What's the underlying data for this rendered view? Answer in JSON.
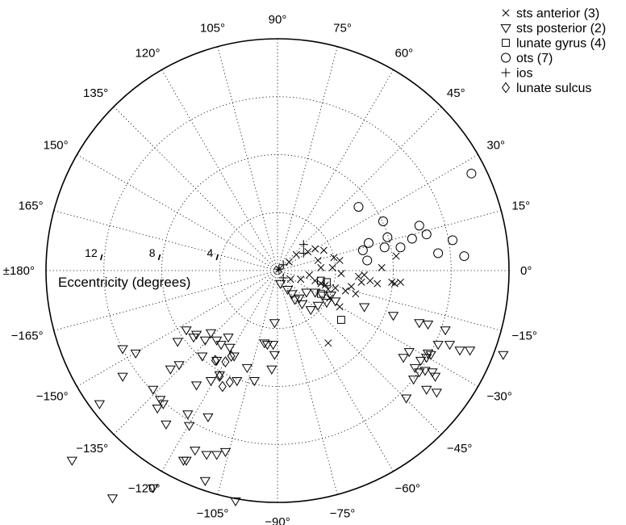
{
  "chart_data": {
    "type": "scatter",
    "subtype": "polar",
    "title": "",
    "axis_label": "Eccentricity (degrees)",
    "r_range": [
      0,
      16
    ],
    "r_rings": [
      4,
      8,
      12,
      16
    ],
    "r_tick_labels": [
      "4",
      "8",
      "12"
    ],
    "theta_range": [
      -180,
      180
    ],
    "angle_ticks": [
      {
        "angle": 0,
        "label": "0°"
      },
      {
        "angle": 15,
        "label": "15°"
      },
      {
        "angle": 30,
        "label": "30°"
      },
      {
        "angle": 45,
        "label": "45°"
      },
      {
        "angle": 60,
        "label": "60°"
      },
      {
        "angle": 75,
        "label": "75°"
      },
      {
        "angle": 90,
        "label": "90°"
      },
      {
        "angle": 105,
        "label": "105°"
      },
      {
        "angle": 120,
        "label": "120°"
      },
      {
        "angle": 135,
        "label": "135°"
      },
      {
        "angle": 150,
        "label": "150°"
      },
      {
        "angle": 165,
        "label": "165°"
      },
      {
        "angle": 180,
        "label": "±180°"
      },
      {
        "angle": -165,
        "label": "−165°"
      },
      {
        "angle": -150,
        "label": "−150°"
      },
      {
        "angle": -135,
        "label": "−135°"
      },
      {
        "angle": -120,
        "label": "−120°"
      },
      {
        "angle": -105,
        "label": "−105°"
      },
      {
        "angle": -90,
        "label": "−90°"
      },
      {
        "angle": -75,
        "label": "−75°"
      },
      {
        "angle": -60,
        "label": "−60°"
      },
      {
        "angle": -45,
        "label": "−45°"
      },
      {
        "angle": -30,
        "label": "−30°"
      },
      {
        "angle": -15,
        "label": "−15°"
      }
    ],
    "grid": true,
    "legend_position": "top-right",
    "series": [
      {
        "name": "sts anterior (3)",
        "marker": "x",
        "points": [
          [
            0.1,
            0.1
          ],
          [
            0.8,
            0.6
          ],
          [
            1.3,
            1.1
          ],
          [
            2.1,
            1.3
          ],
          [
            2.6,
            1.5
          ],
          [
            2.8,
            0.7
          ],
          [
            3.2,
            1.4
          ],
          [
            3.0,
            0.2
          ],
          [
            3.9,
            0.9
          ],
          [
            4.3,
            0.7
          ],
          [
            3.8,
            0.2
          ],
          [
            4.4,
            -0.2
          ],
          [
            0.9,
            -0.6
          ],
          [
            1.6,
            -0.6
          ],
          [
            2.2,
            -0.3
          ],
          [
            2.6,
            -0.7
          ],
          [
            3.0,
            -0.9
          ],
          [
            3.3,
            -1.0
          ],
          [
            3.5,
            -1.3
          ],
          [
            3.6,
            -1.9
          ],
          [
            4.0,
            -1.2
          ],
          [
            4.3,
            -2.5
          ],
          [
            4.7,
            -1.4
          ],
          [
            5.1,
            -1.1
          ],
          [
            5.4,
            -1.6
          ],
          [
            5.6,
            -0.4
          ],
          [
            5.8,
            -0.8
          ],
          [
            6.0,
            -0.3
          ],
          [
            6.4,
            -0.7
          ],
          [
            6.9,
            -0.9
          ],
          [
            7.2,
            0.2
          ],
          [
            7.9,
            -0.8
          ],
          [
            8.1,
            -0.9
          ],
          [
            8.5,
            -0.8
          ],
          [
            8.2,
            1.0
          ],
          [
            3.5,
            -5.0
          ]
        ]
      },
      {
        "name": "sts posterior (2)",
        "marker": "triangle-down",
        "points": [
          [
            0.2,
            -0.9
          ],
          [
            0.7,
            -1.3
          ],
          [
            1.0,
            -1.6
          ],
          [
            1.5,
            -1.9
          ],
          [
            2.0,
            -1.5
          ],
          [
            1.2,
            -2.0
          ],
          [
            1.7,
            -2.3
          ],
          [
            2.3,
            -2.7
          ],
          [
            2.8,
            -2.4
          ],
          [
            3.4,
            -2.2
          ],
          [
            3.7,
            -1.7
          ],
          [
            4.0,
            -2.1
          ],
          [
            3.1,
            -1.7
          ],
          [
            2.6,
            -1.5
          ],
          [
            6.0,
            -2.5
          ],
          [
            8.0,
            -3.1
          ],
          [
            9.8,
            -3.6
          ],
          [
            10.4,
            -3.7
          ],
          [
            11.6,
            -4.1
          ],
          [
            11.9,
            -5.1
          ],
          [
            12.6,
            -5.5
          ],
          [
            13.3,
            -5.5
          ],
          [
            15.6,
            -5.8
          ],
          [
            11.1,
            -5.1
          ],
          [
            9.1,
            -5.6
          ],
          [
            8.7,
            -6.0
          ],
          [
            9.5,
            -6.7
          ],
          [
            9.4,
            -7.5
          ],
          [
            9.9,
            -6.2
          ],
          [
            10.3,
            -6.0
          ],
          [
            10.2,
            -6.9
          ],
          [
            10.6,
            -5.8
          ],
          [
            9.8,
            -7.0
          ],
          [
            10.9,
            -7.3
          ],
          [
            10.3,
            -8.2
          ],
          [
            11.0,
            -8.4
          ],
          [
            10.7,
            -7.0
          ],
          [
            10.4,
            -5.7
          ],
          [
            8.9,
            -8.8
          ],
          [
            -0.2,
            -3.6
          ],
          [
            -0.2,
            -5.8
          ],
          [
            -0.3,
            -5.1
          ],
          [
            -0.7,
            -5.1
          ],
          [
            -0.9,
            -5.0
          ],
          [
            -0.4,
            -6.8
          ],
          [
            -2.1,
            -6.7
          ],
          [
            -1.6,
            -7.6
          ],
          [
            -2.8,
            -7.6
          ],
          [
            -3.0,
            -5.9
          ],
          [
            -3.3,
            -5.3
          ],
          [
            -4.0,
            -7.2
          ],
          [
            -4.6,
            -7.6
          ],
          [
            -4.2,
            -6.2
          ],
          [
            -3.9,
            -5.1
          ],
          [
            -4.2,
            -4.8
          ],
          [
            -3.4,
            -4.6
          ],
          [
            -5.0,
            -4.8
          ],
          [
            -5.8,
            -4.6
          ],
          [
            -6.9,
            -4.9
          ],
          [
            -5.6,
            -4.4
          ],
          [
            -6.3,
            -4.1
          ],
          [
            -4.6,
            -4.3
          ],
          [
            -5.2,
            -5.9
          ],
          [
            -6.8,
            -6.5
          ],
          [
            -7.4,
            -6.8
          ],
          [
            -8.6,
            -8.2
          ],
          [
            -8.1,
            -8.9
          ],
          [
            -7.9,
            -9.2
          ],
          [
            -6.2,
            -9.9
          ],
          [
            -8.3,
            -9.5
          ],
          [
            -7.7,
            -10.6
          ],
          [
            -5.6,
            -7.9
          ],
          [
            -4.8,
            -10.1
          ],
          [
            -6.1,
            -10.7
          ],
          [
            -5.7,
            -12.4
          ],
          [
            -4.9,
            -12.7
          ],
          [
            -6.3,
            -13.1
          ],
          [
            -6.5,
            -13.1
          ],
          [
            -4.2,
            -12.7
          ],
          [
            -3.6,
            -12.5
          ],
          [
            -8.6,
            -15.0
          ],
          [
            -10.7,
            -5.4
          ],
          [
            -12.3,
            -9.2
          ],
          [
            -14.2,
            -13.1
          ],
          [
            -10.7,
            -7.3
          ],
          [
            -5.0,
            -14.5
          ],
          [
            -2.9,
            -15.9
          ],
          [
            -11.4,
            -15.7
          ],
          [
            -9.8,
            -5.7
          ]
        ]
      },
      {
        "name": "lunate gyrus (4)",
        "marker": "square",
        "points": [
          [
            3.0,
            -0.7
          ],
          [
            3.4,
            -0.8
          ],
          [
            4.4,
            -3.4
          ],
          [
            3.0,
            -1.6
          ]
        ]
      },
      {
        "name": "ots (7)",
        "marker": "circle",
        "points": [
          [
            5.6,
            4.4
          ],
          [
            5.9,
            1.4
          ],
          [
            6.2,
            0.7
          ],
          [
            6.3,
            1.9
          ],
          [
            7.4,
            1.6
          ],
          [
            7.6,
            2.3
          ],
          [
            8.5,
            1.6
          ],
          [
            9.3,
            2.2
          ],
          [
            9.8,
            3.1
          ],
          [
            10.3,
            2.5
          ],
          [
            11.1,
            1.2
          ],
          [
            12.1,
            2.1
          ],
          [
            12.9,
            1.0
          ],
          [
            13.4,
            6.7
          ],
          [
            7.3,
            3.4
          ]
        ]
      },
      {
        "name": "ios",
        "marker": "plus",
        "points": [
          [
            0.1,
            0.1
          ],
          [
            1.8,
            1.2
          ],
          [
            1.8,
            1.8
          ],
          [
            0.4,
            -0.5
          ],
          [
            0.4,
            0.4
          ]
        ]
      },
      {
        "name": "lunate sulcus",
        "marker": "diamond",
        "points": [
          [
            -3.8,
            -8.0
          ],
          [
            -3.3,
            -7.7
          ],
          [
            -3.2,
            -5.9
          ],
          [
            -3.6,
            -6.3
          ],
          [
            -4.3,
            -6.2
          ],
          [
            -4.0,
            -7.3
          ]
        ]
      }
    ]
  }
}
